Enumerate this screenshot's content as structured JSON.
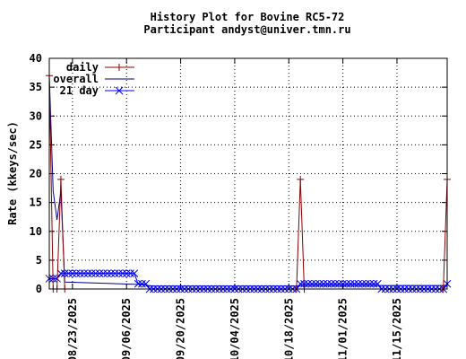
{
  "chart_data": {
    "type": "line",
    "title": "History Plot for Bovine RC5-72",
    "subtitle": "Participant andyst@univer.tmn.ru",
    "ylabel": "Rate (kkeys/sec)",
    "xlabel": "",
    "xlim": [
      "2025-08-17",
      "2025-11-28"
    ],
    "ylim": [
      0,
      40
    ],
    "yticks": [
      0,
      5,
      10,
      15,
      20,
      25,
      30,
      35,
      40
    ],
    "xticks": [
      "08/23/2025",
      "09/06/2025",
      "09/20/2025",
      "10/04/2025",
      "10/18/2025",
      "11/01/2025",
      "11/15/2025"
    ],
    "grid": true,
    "legend_position": "top-left",
    "series": [
      {
        "name": "daily",
        "color": "#8b0000",
        "marker": "plus",
        "points": [
          [
            "2025-08-17",
            37
          ],
          [
            "2025-08-18",
            0
          ],
          [
            "2025-08-19",
            0
          ],
          [
            "2025-08-20",
            19
          ],
          [
            "2025-08-21",
            0
          ],
          [
            "2025-10-20",
            0
          ],
          [
            "2025-10-21",
            19
          ],
          [
            "2025-10-22",
            0
          ],
          [
            "2025-11-27",
            0
          ],
          [
            "2025-11-28",
            19
          ]
        ]
      },
      {
        "name": "overall",
        "color": "#00008b",
        "marker": "none",
        "points": [
          [
            "2025-08-17",
            37
          ],
          [
            "2025-08-18",
            17
          ],
          [
            "2025-08-19",
            12
          ],
          [
            "2025-08-20",
            17
          ],
          [
            "2025-08-21",
            1.2
          ],
          [
            "2025-09-09",
            0.8
          ],
          [
            "2025-09-13",
            0.5
          ],
          [
            "2025-10-20",
            0.5
          ],
          [
            "2025-10-21",
            0.6
          ],
          [
            "2025-11-27",
            0.6
          ],
          [
            "2025-11-28",
            0.7
          ]
        ]
      },
      {
        "name": "21 day",
        "color": "#0000ff",
        "marker": "cross",
        "points": [
          [
            "2025-08-17",
            1.8
          ],
          [
            "2025-08-18",
            1.8
          ],
          [
            "2025-08-19",
            1.8
          ],
          [
            "2025-08-20",
            2.7
          ],
          [
            "2025-08-21",
            2.7
          ],
          [
            "2025-08-22",
            2.7
          ],
          [
            "2025-08-23",
            2.7
          ],
          [
            "2025-08-24",
            2.7
          ],
          [
            "2025-08-25",
            2.7
          ],
          [
            "2025-08-26",
            2.7
          ],
          [
            "2025-08-27",
            2.7
          ],
          [
            "2025-08-28",
            2.7
          ],
          [
            "2025-08-29",
            2.7
          ],
          [
            "2025-08-30",
            2.7
          ],
          [
            "2025-08-31",
            2.7
          ],
          [
            "2025-09-01",
            2.7
          ],
          [
            "2025-09-02",
            2.7
          ],
          [
            "2025-09-03",
            2.7
          ],
          [
            "2025-09-04",
            2.7
          ],
          [
            "2025-09-05",
            2.7
          ],
          [
            "2025-09-06",
            2.7
          ],
          [
            "2025-09-07",
            2.7
          ],
          [
            "2025-09-08",
            2.7
          ],
          [
            "2025-09-09",
            0.9
          ],
          [
            "2025-09-10",
            0.9
          ],
          [
            "2025-09-11",
            0.9
          ],
          [
            "2025-09-12",
            0
          ],
          [
            "2025-09-13",
            0
          ],
          [
            "2025-09-14",
            0
          ],
          [
            "2025-09-15",
            0
          ],
          [
            "2025-09-16",
            0
          ],
          [
            "2025-09-17",
            0
          ],
          [
            "2025-09-18",
            0
          ],
          [
            "2025-09-19",
            0
          ],
          [
            "2025-09-20",
            0
          ],
          [
            "2025-09-21",
            0
          ],
          [
            "2025-09-22",
            0
          ],
          [
            "2025-09-23",
            0
          ],
          [
            "2025-09-24",
            0
          ],
          [
            "2025-09-25",
            0
          ],
          [
            "2025-09-26",
            0
          ],
          [
            "2025-09-27",
            0
          ],
          [
            "2025-09-28",
            0
          ],
          [
            "2025-09-29",
            0
          ],
          [
            "2025-09-30",
            0
          ],
          [
            "2025-10-01",
            0
          ],
          [
            "2025-10-02",
            0
          ],
          [
            "2025-10-03",
            0
          ],
          [
            "2025-10-04",
            0
          ],
          [
            "2025-10-05",
            0
          ],
          [
            "2025-10-06",
            0
          ],
          [
            "2025-10-07",
            0
          ],
          [
            "2025-10-08",
            0
          ],
          [
            "2025-10-09",
            0
          ],
          [
            "2025-10-10",
            0
          ],
          [
            "2025-10-11",
            0
          ],
          [
            "2025-10-12",
            0
          ],
          [
            "2025-10-13",
            0
          ],
          [
            "2025-10-14",
            0
          ],
          [
            "2025-10-15",
            0
          ],
          [
            "2025-10-16",
            0
          ],
          [
            "2025-10-17",
            0
          ],
          [
            "2025-10-18",
            0
          ],
          [
            "2025-10-19",
            0
          ],
          [
            "2025-10-20",
            0
          ],
          [
            "2025-10-21",
            0.9
          ],
          [
            "2025-10-22",
            0.9
          ],
          [
            "2025-10-23",
            0.9
          ],
          [
            "2025-10-24",
            0.9
          ],
          [
            "2025-10-25",
            0.9
          ],
          [
            "2025-10-26",
            0.9
          ],
          [
            "2025-10-27",
            0.9
          ],
          [
            "2025-10-28",
            0.9
          ],
          [
            "2025-10-29",
            0.9
          ],
          [
            "2025-10-30",
            0.9
          ],
          [
            "2025-10-31",
            0.9
          ],
          [
            "2025-11-01",
            0.9
          ],
          [
            "2025-11-02",
            0.9
          ],
          [
            "2025-11-03",
            0.9
          ],
          [
            "2025-11-04",
            0.9
          ],
          [
            "2025-11-05",
            0.9
          ],
          [
            "2025-11-06",
            0.9
          ],
          [
            "2025-11-07",
            0.9
          ],
          [
            "2025-11-08",
            0.9
          ],
          [
            "2025-11-09",
            0.9
          ],
          [
            "2025-11-10",
            0.9
          ],
          [
            "2025-11-11",
            0
          ],
          [
            "2025-11-12",
            0
          ],
          [
            "2025-11-13",
            0
          ],
          [
            "2025-11-14",
            0
          ],
          [
            "2025-11-15",
            0
          ],
          [
            "2025-11-16",
            0
          ],
          [
            "2025-11-17",
            0
          ],
          [
            "2025-11-18",
            0
          ],
          [
            "2025-11-19",
            0
          ],
          [
            "2025-11-20",
            0
          ],
          [
            "2025-11-21",
            0
          ],
          [
            "2025-11-22",
            0
          ],
          [
            "2025-11-23",
            0
          ],
          [
            "2025-11-24",
            0
          ],
          [
            "2025-11-25",
            0
          ],
          [
            "2025-11-26",
            0
          ],
          [
            "2025-11-27",
            0
          ],
          [
            "2025-11-28",
            0.9
          ]
        ]
      }
    ]
  }
}
